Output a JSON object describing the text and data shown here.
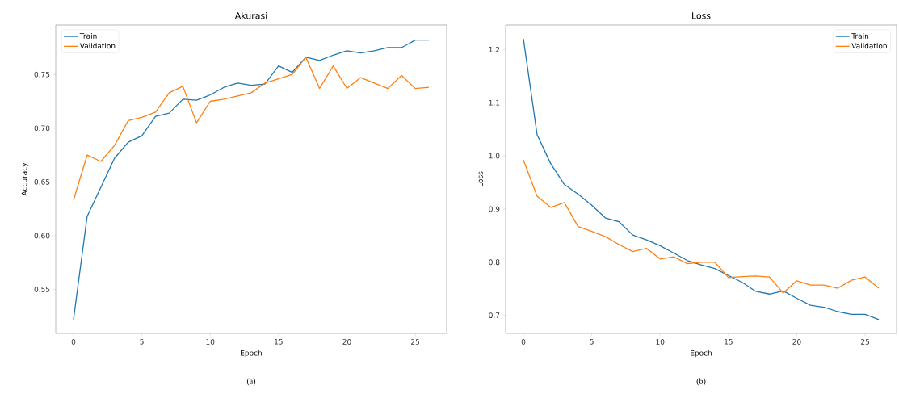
{
  "chart_data": [
    {
      "type": "line",
      "title": "Akurasi",
      "xlabel": "Epoch",
      "ylabel": "Accuracy",
      "legend": "top left",
      "annotations": [
        "(a)"
      ],
      "x": [
        0,
        1,
        2,
        3,
        4,
        5,
        6,
        7,
        8,
        9,
        10,
        11,
        12,
        13,
        14,
        15,
        16,
        17,
        18,
        19,
        20,
        21,
        22,
        23,
        24,
        25,
        26
      ],
      "xlim": [
        -1.3,
        27.3
      ],
      "xticks": [
        0,
        5,
        10,
        15,
        20,
        25
      ],
      "ylim": [
        0.509,
        0.796
      ],
      "yticks": [
        0.55,
        {
          "value": 0.6,
          "label": "0.60"
        },
        0.65,
        {
          "value": 0.7,
          "label": "0.70"
        },
        0.75
      ],
      "series": [
        {
          "name": "Train",
          "color": "#1f77b4",
          "values": [
            0.522,
            0.618,
            0.645,
            0.672,
            0.687,
            0.693,
            0.711,
            0.714,
            0.727,
            0.726,
            0.731,
            0.738,
            0.742,
            0.74,
            0.741,
            0.758,
            0.752,
            0.766,
            0.763,
            0.768,
            0.772,
            0.77,
            0.772,
            0.775,
            0.775,
            0.782,
            0.782
          ]
        },
        {
          "name": "Validation",
          "color": "#ff7f0e",
          "values": [
            0.633,
            0.675,
            0.669,
            0.684,
            0.707,
            0.71,
            0.715,
            0.733,
            0.739,
            0.705,
            0.725,
            0.727,
            0.73,
            0.733,
            0.742,
            0.746,
            0.75,
            0.766,
            0.737,
            0.758,
            0.737,
            0.747,
            0.742,
            0.737,
            0.749,
            0.737,
            0.738
          ]
        }
      ]
    },
    {
      "type": "line",
      "title": "Loss",
      "xlabel": "Epoch",
      "ylabel": "Loss",
      "legend": "top right",
      "annotations": [
        "(b)"
      ],
      "x": [
        0,
        1,
        2,
        3,
        4,
        5,
        6,
        7,
        8,
        9,
        10,
        11,
        12,
        13,
        14,
        15,
        16,
        17,
        18,
        19,
        20,
        21,
        22,
        23,
        24,
        25,
        26
      ],
      "xlim": [
        -1.3,
        27.3
      ],
      "xticks": [
        0,
        5,
        10,
        15,
        20,
        25
      ],
      "ylim": [
        0.666,
        1.246
      ],
      "yticks": [
        0.7,
        0.8,
        0.9,
        {
          "value": 1,
          "label": "1.0"
        },
        1.1,
        1.2
      ],
      "series": [
        {
          "name": "Train",
          "color": "#1f77b4",
          "values": [
            1.22,
            1.04,
            0.985,
            0.946,
            0.928,
            0.907,
            0.883,
            0.876,
            0.851,
            0.842,
            0.831,
            0.817,
            0.803,
            0.795,
            0.788,
            0.775,
            0.762,
            0.745,
            0.74,
            0.746,
            0.732,
            0.719,
            0.715,
            0.707,
            0.702,
            0.702,
            0.692
          ]
        },
        {
          "name": "Validation",
          "color": "#ff7f0e",
          "values": [
            0.992,
            0.924,
            0.903,
            0.912,
            0.867,
            0.858,
            0.848,
            0.833,
            0.82,
            0.826,
            0.806,
            0.81,
            0.797,
            0.8,
            0.8,
            0.771,
            0.773,
            0.774,
            0.772,
            0.742,
            0.765,
            0.757,
            0.757,
            0.751,
            0.766,
            0.772,
            0.751
          ]
        }
      ]
    }
  ]
}
